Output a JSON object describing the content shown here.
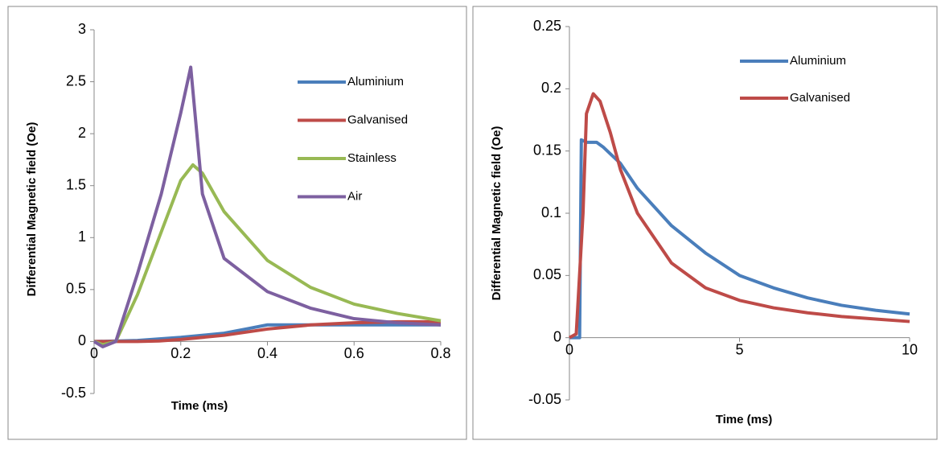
{
  "chart_data": [
    {
      "type": "line",
      "xlabel": "Time (ms)",
      "ylabel": "Differential Magnetic field (Oe)",
      "xlim": [
        0,
        0.8
      ],
      "xticks": [
        0,
        0.2,
        0.4,
        0.6,
        0.8
      ],
      "ylim": [
        -0.5,
        3
      ],
      "yticks": [
        -0.5,
        0,
        0.5,
        1,
        1.5,
        2,
        2.5,
        3
      ],
      "legend": "upper right",
      "series": [
        {
          "name": "Aluminium",
          "color": "#4a7ebb",
          "x": [
            0,
            0.1,
            0.2,
            0.3,
            0.35,
            0.4,
            0.5,
            0.6,
            0.7,
            0.8
          ],
          "values": [
            0,
            0.01,
            0.04,
            0.08,
            0.12,
            0.16,
            0.16,
            0.16,
            0.16,
            0.16
          ]
        },
        {
          "name": "Galvanised",
          "color": "#be4b48",
          "x": [
            0,
            0.1,
            0.15,
            0.2,
            0.3,
            0.4,
            0.5,
            0.6,
            0.7,
            0.8
          ],
          "values": [
            0,
            0,
            0.005,
            0.02,
            0.06,
            0.12,
            0.16,
            0.18,
            0.19,
            0.19
          ]
        },
        {
          "name": "Stainless",
          "color": "#98b954",
          "x": [
            0,
            0.02,
            0.05,
            0.1,
            0.15,
            0.2,
            0.228,
            0.25,
            0.3,
            0.4,
            0.5,
            0.6,
            0.7,
            0.8
          ],
          "values": [
            0,
            -0.03,
            0,
            0.45,
            1.0,
            1.55,
            1.7,
            1.62,
            1.25,
            0.78,
            0.52,
            0.36,
            0.27,
            0.2
          ]
        },
        {
          "name": "Air",
          "color": "#7d60a0",
          "x": [
            0,
            0.02,
            0.05,
            0.1,
            0.155,
            0.2,
            0.223,
            0.25,
            0.3,
            0.4,
            0.5,
            0.6,
            0.7,
            0.8
          ],
          "values": [
            0,
            -0.05,
            0,
            0.65,
            1.42,
            2.2,
            2.64,
            1.42,
            0.8,
            0.48,
            0.32,
            0.22,
            0.18,
            0.16
          ]
        }
      ]
    },
    {
      "type": "line",
      "xlabel": "Time (ms)",
      "ylabel": "Differential Magnetic field (Oe)",
      "xlim": [
        0,
        10
      ],
      "xticks": [
        0,
        5,
        10
      ],
      "ylim": [
        -0.05,
        0.25
      ],
      "yticks": [
        -0.05,
        0,
        0.05,
        0.1,
        0.15,
        0.2,
        0.25
      ],
      "legend": "upper right",
      "series": [
        {
          "name": "Aluminium",
          "color": "#4a7ebb",
          "x": [
            0,
            0.3,
            0.35,
            0.5,
            0.8,
            1,
            1.5,
            2,
            3,
            4,
            5,
            6,
            7,
            8,
            9,
            10
          ],
          "values": [
            0,
            0,
            0.159,
            0.157,
            0.157,
            0.153,
            0.14,
            0.12,
            0.09,
            0.068,
            0.05,
            0.04,
            0.032,
            0.026,
            0.022,
            0.019
          ]
        },
        {
          "name": "Galvanised",
          "color": "#be4b48",
          "x": [
            0,
            0.2,
            0.4,
            0.5,
            0.7,
            0.9,
            1.2,
            1.5,
            2,
            3,
            4,
            5,
            6,
            7,
            8,
            9,
            10
          ],
          "values": [
            0,
            0.003,
            0.1,
            0.18,
            0.196,
            0.19,
            0.165,
            0.135,
            0.1,
            0.06,
            0.04,
            0.03,
            0.024,
            0.02,
            0.017,
            0.015,
            0.013
          ]
        }
      ]
    }
  ]
}
